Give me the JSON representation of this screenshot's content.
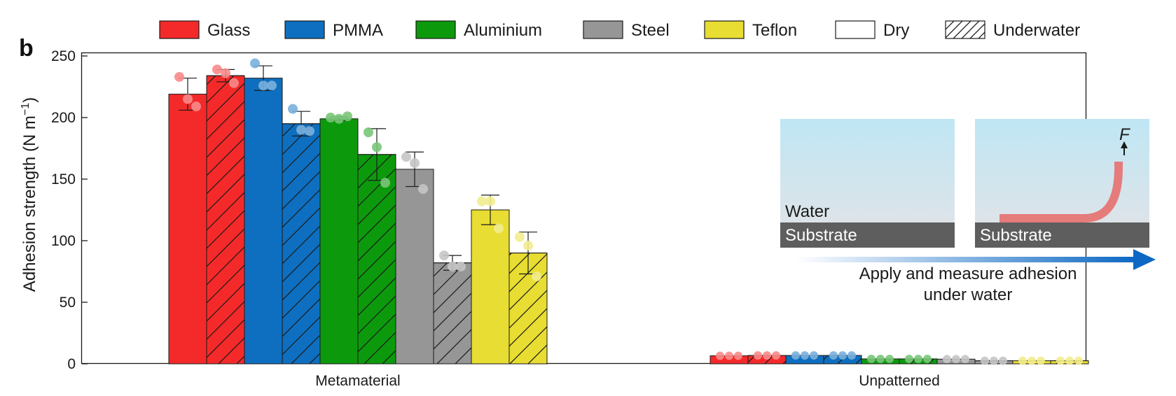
{
  "chart_data": {
    "type": "bar",
    "panel_label": "b",
    "ylabel": "Adhesion strength (N m",
    "ylabel_sup": "−1",
    "ylabel_end": ")",
    "ylim": [
      0,
      250
    ],
    "yticks": [
      0,
      50,
      100,
      150,
      200,
      250
    ],
    "grid": false,
    "legend_position": "top",
    "legend": [
      {
        "label": "Glass",
        "color": "#f42a2a",
        "hatch": false
      },
      {
        "label": "PMMA",
        "color": "#0e6fc0",
        "hatch": false
      },
      {
        "label": "Aluminium",
        "color": "#0c9a0c",
        "hatch": false
      },
      {
        "label": "Steel",
        "color": "#969696",
        "hatch": false
      },
      {
        "label": "Teflon",
        "color": "#e8dd32",
        "hatch": false
      },
      {
        "label": "Dry",
        "color": "#ffffff",
        "hatch": false
      },
      {
        "label": "Underwater",
        "color": "#ffffff",
        "hatch": true
      }
    ],
    "categories": [
      "Metamaterial",
      "Unpatterned"
    ],
    "groups": [
      {
        "category": "Metamaterial",
        "bars": [
          {
            "material": "Glass",
            "condition": "Dry",
            "value": 219,
            "error": 13,
            "points": [
              233,
              215,
              209
            ]
          },
          {
            "material": "Glass",
            "condition": "Underwater",
            "value": 234,
            "error": 5,
            "points": [
              239,
              236,
              228
            ]
          },
          {
            "material": "PMMA",
            "condition": "Dry",
            "value": 232,
            "error": 10,
            "points": [
              244,
              226,
              226
            ]
          },
          {
            "material": "PMMA",
            "condition": "Underwater",
            "value": 195,
            "error": 10,
            "points": [
              207,
              190,
              189
            ]
          },
          {
            "material": "Aluminium",
            "condition": "Dry",
            "value": 199,
            "error": 1.5,
            "points": [
              200,
              199,
              201
            ]
          },
          {
            "material": "Aluminium",
            "condition": "Underwater",
            "value": 170,
            "error": 21,
            "points": [
              188,
              176,
              147
            ]
          },
          {
            "material": "Steel",
            "condition": "Dry",
            "value": 158,
            "error": 14,
            "points": [
              168,
              163,
              142
            ]
          },
          {
            "material": "Steel",
            "condition": "Underwater",
            "value": 82,
            "error": 6,
            "points": [
              88,
              79,
              79
            ]
          },
          {
            "material": "Teflon",
            "condition": "Dry",
            "value": 125,
            "error": 12,
            "points": [
              132,
              132,
              110
            ]
          },
          {
            "material": "Teflon",
            "condition": "Underwater",
            "value": 90,
            "error": 17,
            "points": [
              103,
              96,
              71
            ]
          }
        ]
      },
      {
        "category": "Unpatterned",
        "bars": [
          {
            "material": "Glass",
            "condition": "Dry",
            "value": 6.5,
            "error": 0,
            "points": [
              6.5,
              6.5,
              6.5
            ]
          },
          {
            "material": "Glass",
            "condition": "Underwater",
            "value": 6.8,
            "error": 0,
            "points": [
              6.8,
              6.8,
              6.8
            ]
          },
          {
            "material": "PMMA",
            "condition": "Dry",
            "value": 6.8,
            "error": 0,
            "points": [
              6.8,
              6.8,
              6.8
            ]
          },
          {
            "material": "PMMA",
            "condition": "Underwater",
            "value": 6.8,
            "error": 0,
            "points": [
              6.8,
              6.8,
              6.8
            ]
          },
          {
            "material": "Aluminium",
            "condition": "Dry",
            "value": 4,
            "error": 0,
            "points": [
              4,
              4,
              4
            ]
          },
          {
            "material": "Aluminium",
            "condition": "Underwater",
            "value": 4,
            "error": 0,
            "points": [
              4,
              4,
              4
            ]
          },
          {
            "material": "Steel",
            "condition": "Dry",
            "value": 3.8,
            "error": 0,
            "points": [
              3.8,
              3.8,
              3.8
            ]
          },
          {
            "material": "Steel",
            "condition": "Underwater",
            "value": 2.5,
            "error": 0,
            "points": [
              2.5,
              2.5,
              2.5
            ]
          },
          {
            "material": "Teflon",
            "condition": "Dry",
            "value": 2.5,
            "error": 0,
            "points": [
              2.5,
              2.5,
              2.5
            ]
          },
          {
            "material": "Teflon",
            "condition": "Underwater",
            "value": 2.5,
            "error": 0,
            "points": [
              2.5,
              2.5,
              2.5
            ]
          }
        ]
      }
    ],
    "inset": {
      "water_label": "Water",
      "substrate_label": "Substrate",
      "force_label": "F",
      "arrow_caption_line1": "Apply and measure adhesion",
      "arrow_caption_line2": "under water",
      "water_color": "#bfe6f4",
      "substrate_color": "#5e5e5e",
      "strip_color": "#e57b7b",
      "arrow_color": "#0d68c4"
    }
  }
}
